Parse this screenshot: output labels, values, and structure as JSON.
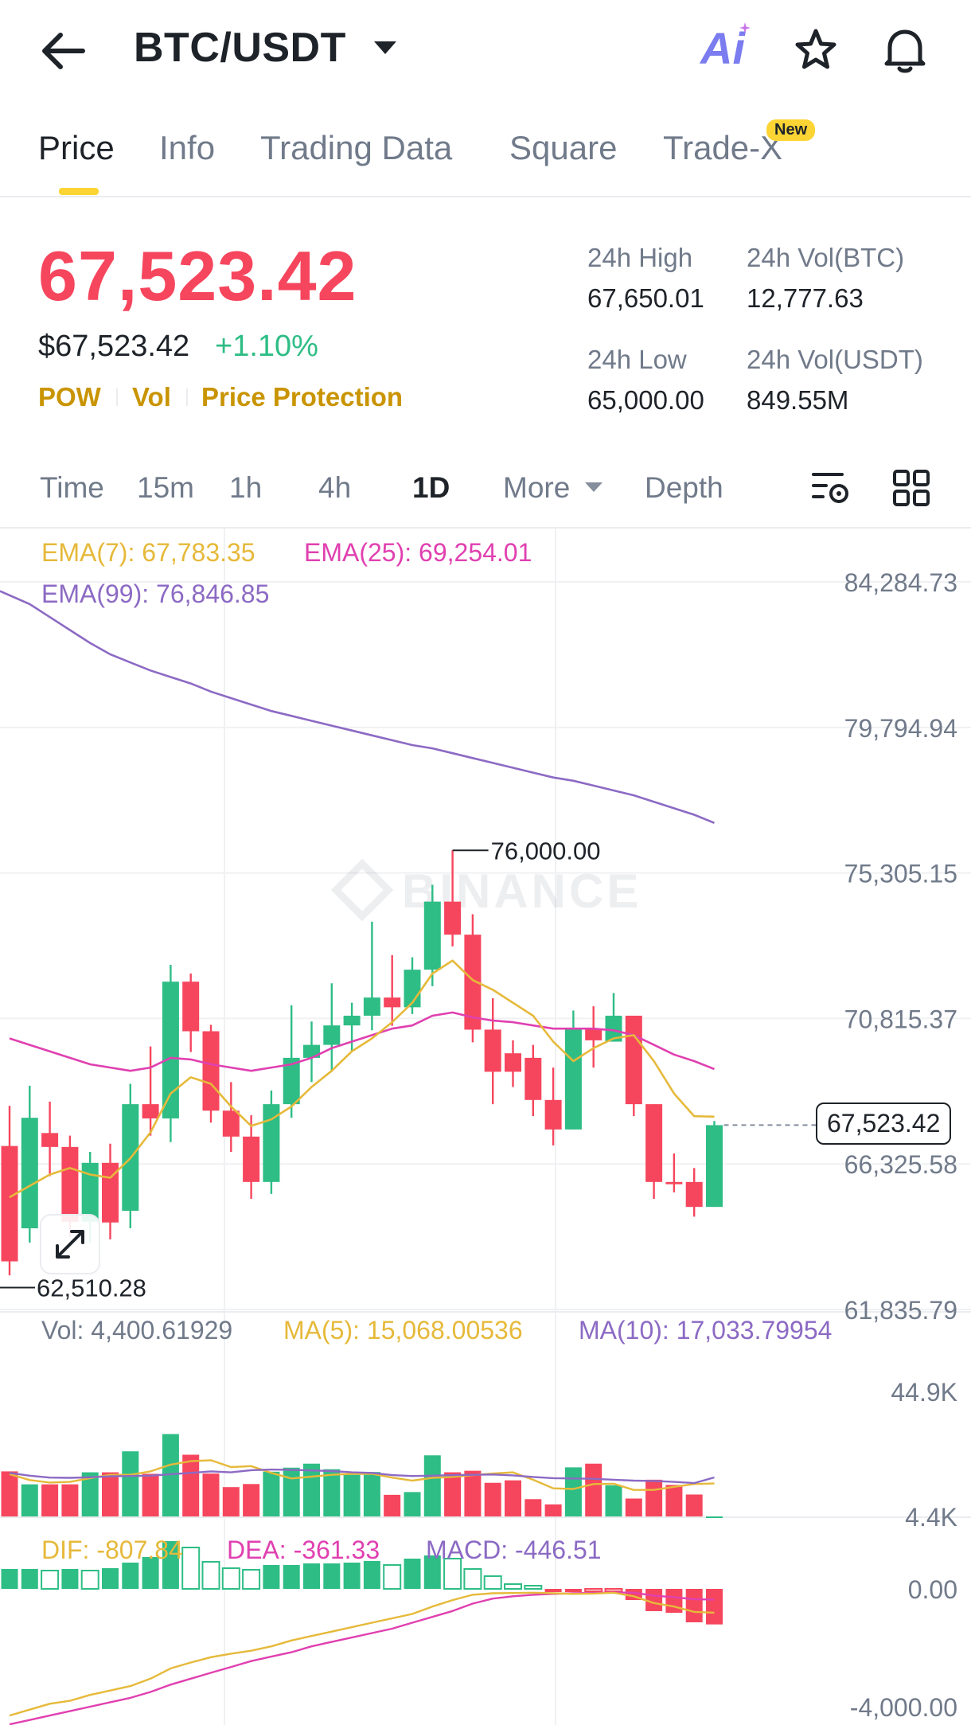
{
  "header": {
    "pair": "BTC/USDT",
    "ai_label": "Ai"
  },
  "tabs": [
    "Price",
    "Info",
    "Trading Data",
    "Square",
    "Trade-X"
  ],
  "new_badge": "New",
  "price": {
    "last": "67,523.42",
    "usd": "$67,523.42",
    "change": "+1.10%",
    "tags": [
      "POW",
      "Vol",
      "Price Protection"
    ]
  },
  "stats": {
    "high_label": "24h High",
    "high_value": "67,650.01",
    "low_label": "24h Low",
    "low_value": "65,000.00",
    "vol_btc_label": "24h Vol(BTC)",
    "vol_btc_value": "12,777.63",
    "vol_usdt_label": "24h Vol(USDT)",
    "vol_usdt_value": "849.55M"
  },
  "intervals": [
    "Time",
    "15m",
    "1h",
    "4h",
    "1D",
    "More",
    "Depth"
  ],
  "active_interval": "1D",
  "colors": {
    "up": "#2ebd85",
    "down": "#f6465d",
    "ema7": "#e6b93a",
    "ema25": "#e040b0",
    "ema99": "#8c6ac4",
    "brand": "#fcd535"
  },
  "chart_data": {
    "type": "candlestick",
    "watermark": "BINANCE",
    "ema_legend": {
      "ema7": "EMA(7): 67,783.35",
      "ema25": "EMA(25): 69,254.01",
      "ema99": "EMA(99): 76,846.85"
    },
    "y_ticks": [
      "84,284.73",
      "79,794.94",
      "75,305.15",
      "70,815.37",
      "66,325.58",
      "61,835.79"
    ],
    "y_tick_values": [
      84284.73,
      79794.94,
      75305.15,
      70815.37,
      66325.58,
      61835.79
    ],
    "price_range": [
      61835.79,
      84284.73
    ],
    "high_marker": "76,000.00",
    "high_marker_value": 76000.0,
    "low_marker": "62,510.28",
    "low_marker_value": 62510.28,
    "last_price_tag": "67,523.42",
    "last_price_value": 67523.42,
    "candles": [
      {
        "o": 66880,
        "h": 68120,
        "c": 63320,
        "l": 62890
      },
      {
        "o": 64340,
        "h": 68740,
        "c": 67750,
        "l": 63900
      },
      {
        "o": 67280,
        "h": 68250,
        "c": 66850,
        "l": 65950
      },
      {
        "o": 66850,
        "h": 67200,
        "c": 64540,
        "l": 64080
      },
      {
        "o": 64540,
        "h": 66700,
        "c": 66360,
        "l": 63900
      },
      {
        "o": 66360,
        "h": 66950,
        "c": 64520,
        "l": 64000
      },
      {
        "o": 64880,
        "h": 68800,
        "c": 68170,
        "l": 64340
      },
      {
        "o": 68170,
        "h": 69950,
        "c": 67730,
        "l": 67200
      },
      {
        "o": 67730,
        "h": 72470,
        "c": 71950,
        "l": 67000
      },
      {
        "o": 71950,
        "h": 72200,
        "c": 70420,
        "l": 69780
      },
      {
        "o": 70420,
        "h": 70620,
        "c": 67970,
        "l": 67600
      },
      {
        "o": 67970,
        "h": 68850,
        "c": 67170,
        "l": 66700
      },
      {
        "o": 67170,
        "h": 67830,
        "c": 65770,
        "l": 65250
      },
      {
        "o": 65770,
        "h": 68590,
        "c": 68170,
        "l": 65400
      },
      {
        "o": 68170,
        "h": 71220,
        "c": 69600,
        "l": 67750
      },
      {
        "o": 69600,
        "h": 70720,
        "c": 70000,
        "l": 68850
      },
      {
        "o": 70000,
        "h": 71900,
        "c": 70600,
        "l": 69170
      },
      {
        "o": 70600,
        "h": 71300,
        "c": 70900,
        "l": 69790
      },
      {
        "o": 70900,
        "h": 73800,
        "c": 71460,
        "l": 70450
      },
      {
        "o": 71460,
        "h": 72770,
        "c": 71160,
        "l": 70590
      },
      {
        "o": 71160,
        "h": 72700,
        "c": 72320,
        "l": 70950
      },
      {
        "o": 72320,
        "h": 74940,
        "c": 74420,
        "l": 71810
      },
      {
        "o": 74420,
        "h": 76000,
        "c": 73400,
        "l": 73040
      },
      {
        "o": 73400,
        "h": 74030,
        "c": 70470,
        "l": 70080
      },
      {
        "o": 70470,
        "h": 71440,
        "c": 69170,
        "l": 68170
      },
      {
        "o": 69740,
        "h": 70140,
        "c": 69170,
        "l": 68700
      },
      {
        "o": 69600,
        "h": 70000,
        "c": 68300,
        "l": 67800
      },
      {
        "o": 68300,
        "h": 69300,
        "c": 67390,
        "l": 66900
      },
      {
        "o": 67390,
        "h": 71060,
        "c": 70470,
        "l": 67390
      },
      {
        "o": 70470,
        "h": 71190,
        "c": 70140,
        "l": 69300
      },
      {
        "o": 70100,
        "h": 71600,
        "c": 70900,
        "l": 70100
      },
      {
        "o": 70900,
        "h": 70900,
        "c": 68170,
        "l": 67800
      },
      {
        "o": 68170,
        "h": 68170,
        "c": 65770,
        "l": 65250
      },
      {
        "o": 65770,
        "h": 66650,
        "c": 65700,
        "l": 65450
      },
      {
        "o": 65770,
        "h": 66200,
        "c": 65000,
        "l": 64700
      },
      {
        "o": 65000,
        "h": 67650,
        "c": 67523,
        "l": 65000
      }
    ],
    "ema7_values": [
      65300,
      65650,
      66000,
      66200,
      66000,
      65900,
      66500,
      67300,
      68500,
      69000,
      68800,
      68100,
      67500,
      67700,
      68100,
      68700,
      69200,
      69800,
      70200,
      70700,
      71300,
      72200,
      72600,
      72000,
      71700,
      71300,
      70900,
      70100,
      69500,
      69900,
      70200,
      70300,
      69500,
      68500,
      67800,
      67783.35
    ],
    "ema25_values": [
      70200,
      70000,
      69800,
      69600,
      69400,
      69300,
      69200,
      69300,
      69600,
      69550,
      69400,
      69300,
      69200,
      69300,
      69400,
      69600,
      69900,
      70100,
      70300,
      70500,
      70600,
      70900,
      71000,
      70850,
      70750,
      70700,
      70600,
      70500,
      70500,
      70500,
      70450,
      70300,
      70000,
      69700,
      69500,
      69254.01
    ],
    "ema99_values": [
      84000,
      83600,
      83200,
      82800,
      82400,
      82050,
      81800,
      81550,
      81350,
      81150,
      80900,
      80700,
      80500,
      80300,
      80150,
      80000,
      79850,
      79700,
      79550,
      79400,
      79250,
      79150,
      79000,
      78850,
      78700,
      78550,
      78400,
      78250,
      78150,
      78000,
      77850,
      77700,
      77500,
      77300,
      77100,
      76846.85
    ],
    "volume": {
      "legend": {
        "vol": "Vol: 4,400.61929",
        "ma5": "MA(5): 15,068.00536",
        "ma10": "MA(10): 17,033.79954"
      },
      "y_ticks": [
        "44.9K",
        "4.4K"
      ],
      "range": [
        4400,
        44900
      ],
      "values": [
        19000,
        14800,
        14800,
        14800,
        18700,
        18700,
        25500,
        18200,
        31100,
        24400,
        18300,
        13900,
        14900,
        18900,
        20200,
        21500,
        19700,
        17900,
        18800,
        11400,
        12300,
        24200,
        18700,
        19200,
        15300,
        16100,
        10000,
        8300,
        20300,
        21500,
        14500,
        10200,
        16300,
        14600,
        11500,
        4400
      ],
      "ma5_values": [
        18100,
        16200,
        15400,
        15600,
        16800,
        17900,
        17900,
        19000,
        21200,
        22300,
        22600,
        20400,
        20700,
        18500,
        16700,
        17300,
        17900,
        18200,
        18200,
        17000,
        16000,
        16900,
        17200,
        17800,
        18300,
        18700,
        16300,
        13500,
        13300,
        14900,
        15000,
        13000,
        13000,
        14000,
        14900,
        15068.00536
      ],
      "ma10_values": [
        18500,
        17600,
        17000,
        16900,
        17100,
        17400,
        17500,
        17600,
        18100,
        18500,
        19000,
        18700,
        19400,
        19600,
        19500,
        19300,
        19100,
        18700,
        18500,
        17800,
        17500,
        17600,
        17800,
        17900,
        18000,
        17700,
        17200,
        16800,
        16700,
        16600,
        16300,
        16000,
        15900,
        15600,
        15200,
        17033.79954
      ]
    },
    "macd": {
      "legend": {
        "dif": "DIF: -807.84",
        "dea": "DEA: -361.33",
        "macd": "MACD: -446.51"
      },
      "y_ticks": [
        "0.00",
        "-4,000.00"
      ],
      "range": [
        -4000,
        0
      ],
      "hist": [
        250,
        250,
        230,
        250,
        230,
        260,
        330,
        400,
        600,
        520,
        340,
        260,
        240,
        300,
        300,
        320,
        320,
        330,
        350,
        300,
        380,
        420,
        380,
        250,
        160,
        60,
        40,
        -40,
        -40,
        -30,
        -20,
        -140,
        -280,
        -300,
        -420,
        -446.51
      ],
      "dif_values": [
        -4300,
        -4100,
        -3900,
        -3800,
        -3600,
        -3450,
        -3300,
        -3050,
        -2700,
        -2500,
        -2320,
        -2200,
        -2100,
        -1950,
        -1750,
        -1600,
        -1450,
        -1300,
        -1150,
        -1000,
        -850,
        -600,
        -380,
        -200,
        -150,
        -140,
        -130,
        -150,
        -170,
        -160,
        -130,
        -250,
        -480,
        -600,
        -780,
        -807.84
      ],
      "dea_values": [
        -4600,
        -4450,
        -4300,
        -4150,
        -4000,
        -3850,
        -3700,
        -3500,
        -3250,
        -3050,
        -2850,
        -2650,
        -2450,
        -2300,
        -2150,
        -1950,
        -1800,
        -1650,
        -1500,
        -1350,
        -1150,
        -950,
        -750,
        -500,
        -330,
        -250,
        -200,
        -170,
        -150,
        -140,
        -120,
        -130,
        -230,
        -280,
        -350,
        -361.33
      ]
    }
  }
}
